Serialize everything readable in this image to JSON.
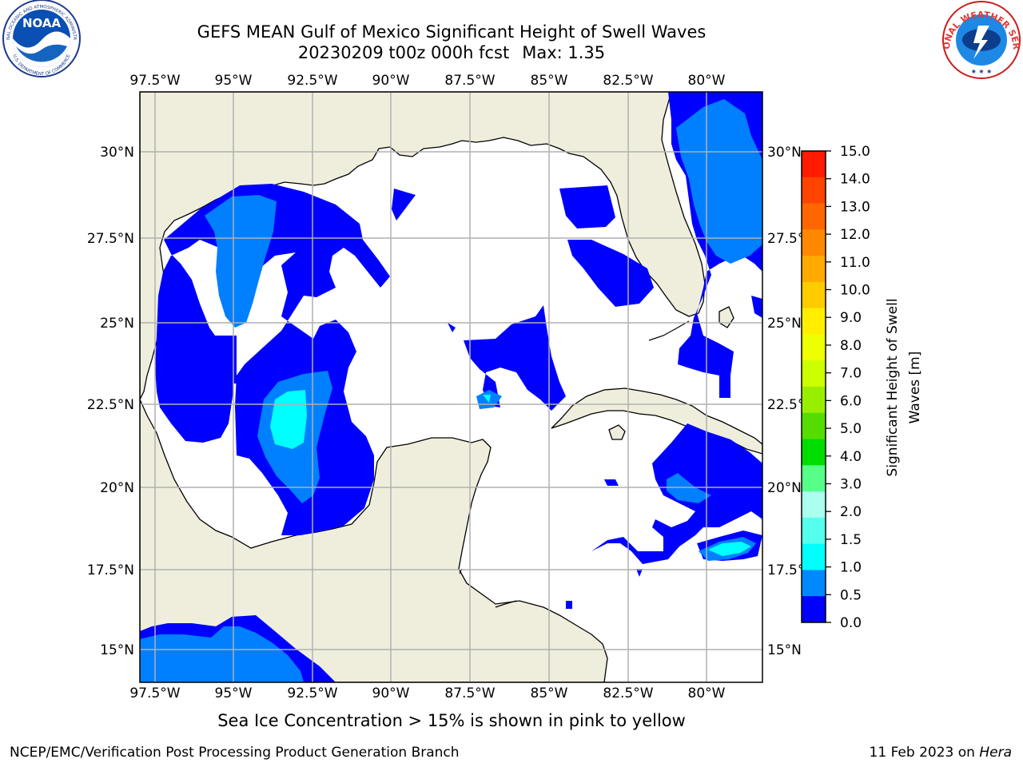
{
  "title": {
    "line1": "GEFS MEAN Gulf of Mexico Significant Height of Swell Waves",
    "date_run": "20230209 t00z 000h fcst",
    "max": "Max: 1.35"
  },
  "logos": {
    "left": "NOAA",
    "left_ring_top": "NATIONAL OCEANIC AND ATMOSPHERIC ADMINISTRATION",
    "left_ring_bottom": "U.S. DEPARTMENT OF COMMERCE",
    "right_ring": "NATIONAL WEATHER SERVICE"
  },
  "axes": {
    "lon_labels": [
      "97.5°W",
      "95°W",
      "92.5°W",
      "90°W",
      "87.5°W",
      "85°W",
      "82.5°W",
      "80°W"
    ],
    "lat_labels": [
      "30°N",
      "27.5°N",
      "25°N",
      "22.5°N",
      "20°N",
      "17.5°N",
      "15°N"
    ]
  },
  "colorbar": {
    "label_line1": "Significant Height of Swell",
    "label_line2": "Waves [m]",
    "ticks": [
      "15.0",
      "14.0",
      "13.0",
      "12.0",
      "11.0",
      "10.0",
      "9.0",
      "8.0",
      "7.0",
      "6.0",
      "5.0",
      "4.0",
      "3.0",
      "2.0",
      "1.5",
      "1.0",
      "0.5",
      "0.0"
    ],
    "colors": [
      "#ff1a00",
      "#ff4400",
      "#ff6600",
      "#ff8800",
      "#ffaa00",
      "#ffcc00",
      "#ffee00",
      "#eeff00",
      "#ccff00",
      "#99ee00",
      "#55dd00",
      "#00dd00",
      "#55ff88",
      "#aaffee",
      "#55ffee",
      "#00ffff",
      "#0088ff",
      "#0000ff"
    ]
  },
  "colors": {
    "land": "#efeedd",
    "ocean": "#ffffff",
    "swell_0_05": "#0000ff",
    "swell_05_10": "#0080ff",
    "swell_10_15": "#00ffff",
    "grid": "#b0b0b0"
  },
  "note": "Sea Ice Concentration > 15% is shown in pink to yellow",
  "footer": {
    "left": "NCEP/EMC/Verification Post Processing Product Generation Branch",
    "date": "11 Feb 2023 on",
    "machine": "Hera"
  }
}
